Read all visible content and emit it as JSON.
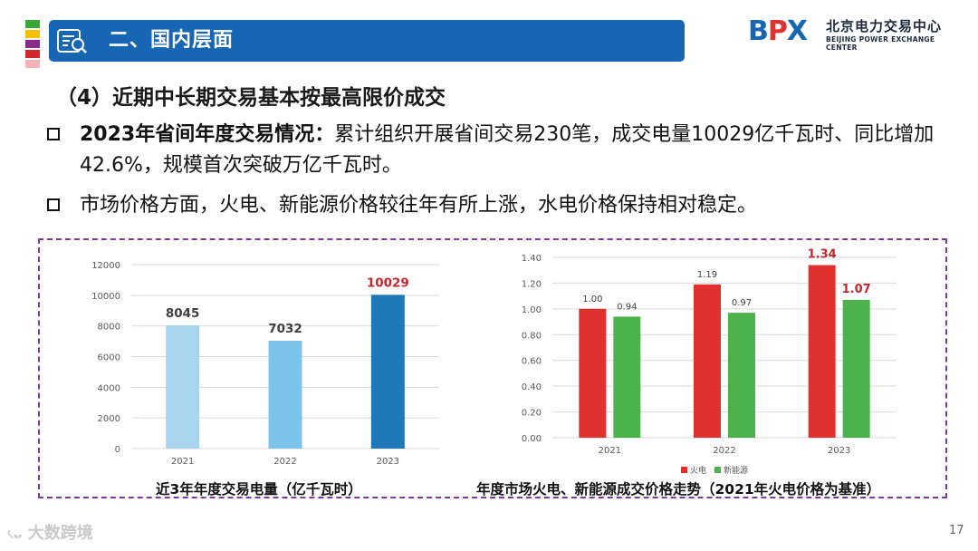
{
  "header": {
    "title": "二、国内层面",
    "strip_colors": [
      "#3aa63a",
      "#f2c200",
      "#8b2a8b",
      "#d0282f",
      "#f5b2b7"
    ],
    "banner_color": "#1766b4"
  },
  "logo": {
    "mark": "BPX",
    "name_cn": "北京电力交易中心",
    "name_en": "BEIJING POWER EXCHANGE CENTER"
  },
  "section": {
    "heading": "（4）近期中长期交易基本按最高限价成交"
  },
  "bullets": [
    {
      "bold": "2023年省间年度交易情况：",
      "text": "累计组织开展省间交易230笔，成交电量10029亿千瓦时、同比增加42.6%，规模首次突破万亿千瓦时。"
    },
    {
      "bold": "",
      "text": "市场价格方面，火电、新能源价格较往年有所上涨，水电价格保持相对稳定。"
    }
  ],
  "chart_data": [
    {
      "type": "bar",
      "title": "近3年年度交易电量（亿千瓦时）",
      "categories": [
        "2021",
        "2022",
        "2023"
      ],
      "values": [
        8045,
        7032,
        10029
      ],
      "value_labels": [
        "8045",
        "7032",
        "10029"
      ],
      "bar_colors": [
        "#a8d4ee",
        "#7cc3ea",
        "#1f78b8"
      ],
      "label_colors": [
        "#404040",
        "#404040",
        "#c0282d"
      ],
      "ylim": [
        0,
        12000
      ],
      "yticks": [
        "0",
        "2000",
        "4000",
        "6000",
        "8000",
        "10000",
        "12000"
      ],
      "grid": true
    },
    {
      "type": "bar",
      "title": "年度市场火电、新能源成交价格走势（2021年火电价格为基准）",
      "categories": [
        "2021",
        "2022",
        "2023"
      ],
      "series": [
        {
          "name": "火电",
          "values": [
            1.0,
            1.19,
            1.34
          ],
          "labels": [
            "1.00",
            "1.19",
            "1.34"
          ],
          "color": "#e03030"
        },
        {
          "name": "新能源",
          "values": [
            0.94,
            0.97,
            1.07
          ],
          "labels": [
            "0.94",
            "0.97",
            "1.07"
          ],
          "color": "#4cb34c"
        }
      ],
      "highlight_label_color": "#c0282d",
      "ylim": [
        0,
        1.4
      ],
      "yticks": [
        "0.00",
        "0.20",
        "0.40",
        "0.60",
        "0.80",
        "1.00",
        "1.20",
        "1.40"
      ],
      "legend": "bottom-center",
      "grid": true
    }
  ],
  "footer": {
    "brand": "大数跨境",
    "page_number": "17"
  }
}
